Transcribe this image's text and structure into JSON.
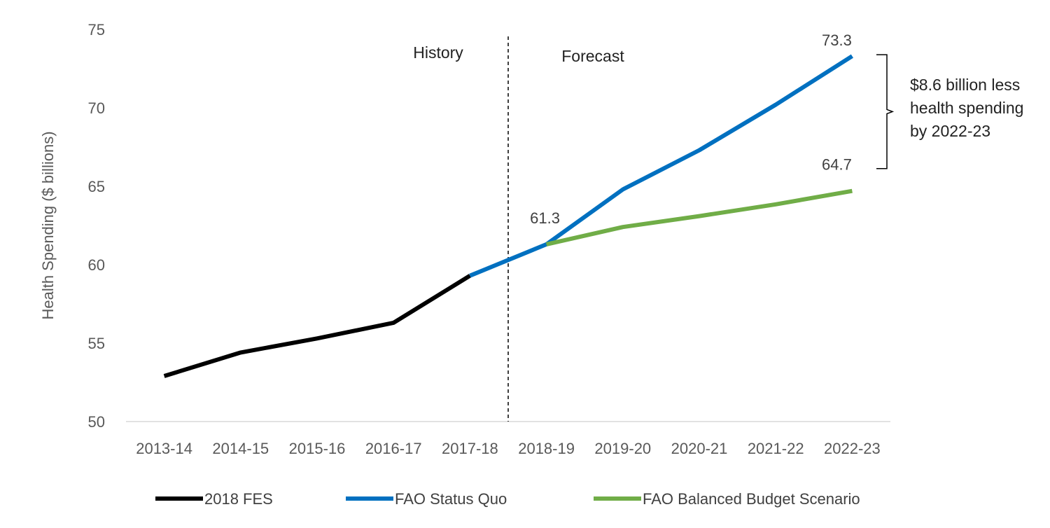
{
  "chart_data": {
    "type": "line",
    "title": "",
    "xlabel": "",
    "ylabel": "Health Spending ($ billions)",
    "ylim": [
      50,
      75
    ],
    "yticks": [
      50,
      55,
      60,
      65,
      70,
      75
    ],
    "categories": [
      "2013-14",
      "2014-15",
      "2015-16",
      "2016-17",
      "2017-18",
      "2018-19",
      "2019-20",
      "2020-21",
      "2021-22",
      "2022-23"
    ],
    "series": [
      {
        "name": "2018 FES",
        "color": "#000000",
        "values": [
          52.9,
          54.4,
          55.3,
          56.3,
          59.3,
          null,
          null,
          null,
          null,
          null
        ]
      },
      {
        "name": "FAO Status Quo",
        "color": "#0070c0",
        "values": [
          null,
          null,
          null,
          null,
          59.3,
          61.3,
          64.8,
          67.3,
          70.2,
          73.3
        ]
      },
      {
        "name": "FAO Balanced Budget Scenario",
        "color": "#70ad47",
        "values": [
          null,
          null,
          null,
          null,
          null,
          61.3,
          62.4,
          63.1,
          63.85,
          64.7
        ]
      }
    ],
    "history_label": "History",
    "forecast_label": "Forecast",
    "divider_after_category": 4.5,
    "data_labels": [
      {
        "text": "61.3",
        "category_index": 5,
        "value": 61.3
      },
      {
        "text": "73.3",
        "category_index": 9,
        "value": 73.3
      },
      {
        "text": "64.7",
        "category_index": 9,
        "value": 64.7
      }
    ],
    "bracket_annotation": {
      "lines": [
        "$8.6 billion less",
        "health spending",
        "by 2022-23"
      ],
      "from": 64.7,
      "to": 73.3
    },
    "legend_position": "bottom"
  }
}
